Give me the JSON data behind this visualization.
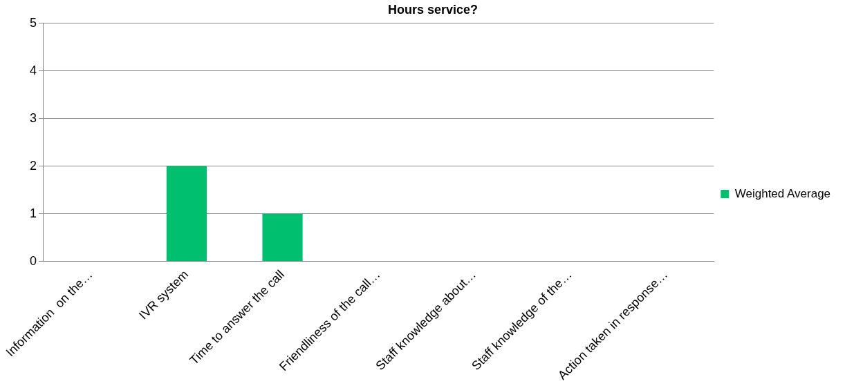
{
  "chart_data": {
    "type": "bar",
    "title": "Hours service?",
    "categories": [
      "Information  on the…",
      "IVR system",
      "Time to answer the call",
      "Friendliness of the call…",
      "Staff knowledge about…",
      "Staff knowledge of the…",
      "Action taken in response…"
    ],
    "series": [
      {
        "name": "Weighted Average",
        "color": "#00c070",
        "values": [
          0,
          2,
          1,
          0,
          0,
          0,
          0
        ]
      }
    ],
    "ylim": [
      0,
      5
    ],
    "yticks": [
      0,
      1,
      2,
      3,
      4,
      5
    ],
    "grid": "y",
    "legend": "right"
  }
}
